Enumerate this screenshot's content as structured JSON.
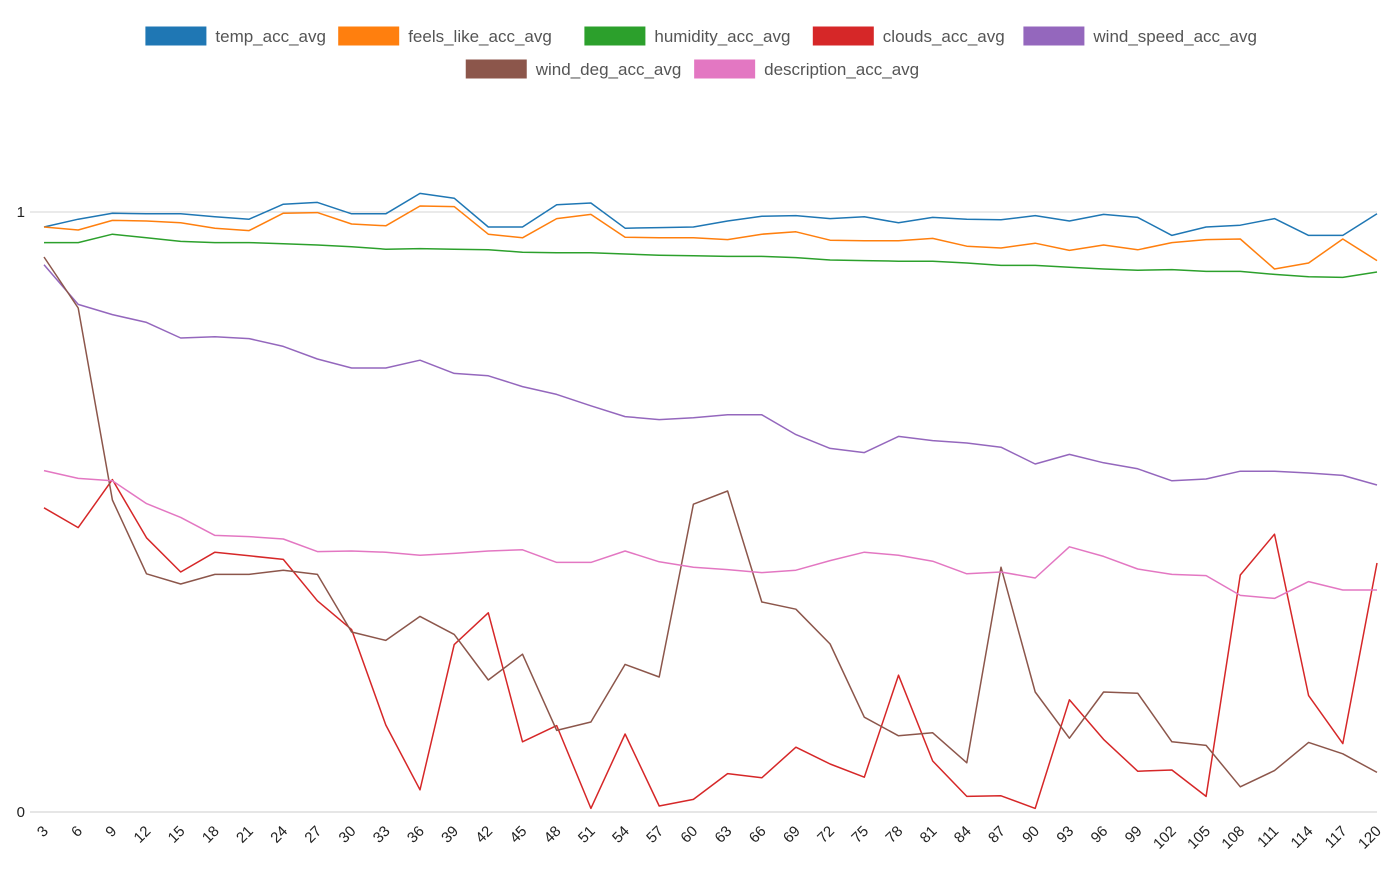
{
  "chart_data": {
    "type": "line",
    "title": "",
    "xlabel": "",
    "ylabel": "",
    "ylim": [
      0,
      1
    ],
    "yticks": [
      {
        "value": 0,
        "label": "0"
      },
      {
        "value": 1,
        "label": "1"
      }
    ],
    "grid": true,
    "legend_position": "top",
    "x": [
      3,
      6,
      9,
      12,
      15,
      18,
      21,
      24,
      27,
      30,
      33,
      36,
      39,
      42,
      45,
      48,
      51,
      54,
      57,
      60,
      63,
      66,
      69,
      72,
      75,
      78,
      81,
      84,
      87,
      90,
      93,
      96,
      99,
      102,
      105,
      108,
      111,
      114,
      117,
      120
    ],
    "x_tick_labels": [
      "3",
      "6",
      "9",
      "12",
      "15",
      "18",
      "21",
      "24",
      "27",
      "30",
      "33",
      "36",
      "39",
      "42",
      "45",
      "48",
      "51",
      "54",
      "57",
      "60",
      "63",
      "66",
      "69",
      "72",
      "75",
      "78",
      "81",
      "84",
      "87",
      "90",
      "93",
      "96",
      "99",
      "102",
      "105",
      "108",
      "111",
      "114",
      "117",
      "120"
    ],
    "series": [
      {
        "name": "temp_acc_avg",
        "color": "#1f77b4",
        "values": [
          0.975,
          0.988,
          0.998,
          0.997,
          0.997,
          0.992,
          0.988,
          1.013,
          1.016,
          0.997,
          0.997,
          1.031,
          1.023,
          0.975,
          0.975,
          1.012,
          1.015,
          0.973,
          0.974,
          0.975,
          0.985,
          0.993,
          0.994,
          0.989,
          0.992,
          0.982,
          0.991,
          0.988,
          0.987,
          0.994,
          0.985,
          0.996,
          0.991,
          0.961,
          0.975,
          0.978,
          0.989,
          0.961,
          0.961,
          0.997
        ]
      },
      {
        "name": "feels_like_acc_avg",
        "color": "#ff7f0e",
        "values": [
          0.975,
          0.97,
          0.986,
          0.985,
          0.982,
          0.973,
          0.969,
          0.998,
          0.999,
          0.98,
          0.977,
          1.01,
          1.009,
          0.963,
          0.957,
          0.989,
          0.996,
          0.958,
          0.957,
          0.957,
          0.954,
          0.963,
          0.967,
          0.953,
          0.952,
          0.952,
          0.956,
          0.943,
          0.94,
          0.948,
          0.936,
          0.945,
          0.937,
          0.949,
          0.954,
          0.955,
          0.905,
          0.915,
          0.955,
          0.919
        ]
      },
      {
        "name": "humidity_acc_avg",
        "color": "#2ca02c",
        "values": [
          0.949,
          0.949,
          0.963,
          0.957,
          0.951,
          0.949,
          0.949,
          0.947,
          0.945,
          0.942,
          0.938,
          0.939,
          0.938,
          0.937,
          0.933,
          0.932,
          0.932,
          0.93,
          0.928,
          0.927,
          0.926,
          0.926,
          0.924,
          0.92,
          0.919,
          0.918,
          0.918,
          0.915,
          0.911,
          0.911,
          0.908,
          0.905,
          0.903,
          0.904,
          0.901,
          0.901,
          0.896,
          0.892,
          0.891,
          0.9
        ]
      },
      {
        "name": "clouds_acc_avg",
        "color": "#d62728",
        "values": [
          0.507,
          0.474,
          0.554,
          0.457,
          0.4,
          0.433,
          0.427,
          0.421,
          0.352,
          0.304,
          0.145,
          0.037,
          0.279,
          0.332,
          0.117,
          0.144,
          0.006,
          0.13,
          0.01,
          0.021,
          0.064,
          0.057,
          0.108,
          0.08,
          0.058,
          0.228,
          0.085,
          0.026,
          0.027,
          0.006,
          0.187,
          0.121,
          0.068,
          0.07,
          0.026,
          0.395,
          0.463,
          0.194,
          0.114,
          0.415
        ]
      },
      {
        "name": "wind_speed_acc_avg",
        "color": "#9467bd",
        "values": [
          0.912,
          0.846,
          0.829,
          0.816,
          0.79,
          0.792,
          0.789,
          0.776,
          0.755,
          0.74,
          0.74,
          0.753,
          0.731,
          0.727,
          0.709,
          0.696,
          0.677,
          0.659,
          0.654,
          0.657,
          0.662,
          0.662,
          0.629,
          0.606,
          0.599,
          0.626,
          0.619,
          0.615,
          0.608,
          0.58,
          0.596,
          0.582,
          0.572,
          0.552,
          0.555,
          0.568,
          0.568,
          0.565,
          0.561,
          0.545
        ]
      },
      {
        "name": "wind_deg_acc_avg",
        "color": "#8c564b",
        "values": [
          0.925,
          0.84,
          0.52,
          0.397,
          0.38,
          0.396,
          0.396,
          0.403,
          0.396,
          0.3,
          0.286,
          0.326,
          0.296,
          0.22,
          0.263,
          0.136,
          0.15,
          0.246,
          0.225,
          0.513,
          0.535,
          0.35,
          0.338,
          0.28,
          0.158,
          0.127,
          0.132,
          0.082,
          0.408,
          0.2,
          0.123,
          0.2,
          0.198,
          0.117,
          0.111,
          0.042,
          0.069,
          0.116,
          0.097,
          0.066
        ]
      },
      {
        "name": "description_acc_avg",
        "color": "#e377c2",
        "values": [
          0.569,
          0.556,
          0.552,
          0.514,
          0.491,
          0.461,
          0.459,
          0.455,
          0.434,
          0.435,
          0.433,
          0.428,
          0.431,
          0.435,
          0.437,
          0.416,
          0.416,
          0.435,
          0.417,
          0.408,
          0.404,
          0.399,
          0.403,
          0.419,
          0.433,
          0.428,
          0.418,
          0.397,
          0.4,
          0.39,
          0.442,
          0.426,
          0.405,
          0.396,
          0.394,
          0.361,
          0.356,
          0.384,
          0.37,
          0.37
        ]
      }
    ]
  }
}
